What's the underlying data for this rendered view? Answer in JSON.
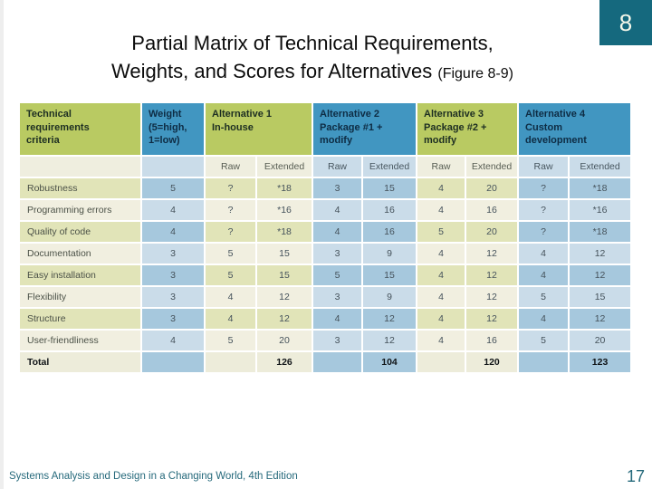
{
  "slide": {
    "number_badge": "8",
    "title_line1": "Partial Matrix of Technical Requirements,",
    "title_line2": "Weights, and Scores for Alternatives",
    "figure_ref": "(Figure 8-9)",
    "footer": "Systems Analysis and Design in a Changing World, 4th Edition",
    "page_number": "17"
  },
  "colors": {
    "header_green": "#b9ca62",
    "header_blue": "#4196c1",
    "badge_teal": "#15697e",
    "footer_teal": "#25697b",
    "row_green_dark": "#e1e4b8",
    "row_green_light": "#f1efe0",
    "row_blue_dark": "#a6c8dd",
    "row_blue_light": "#cadce9"
  },
  "matrix": {
    "col_headers": [
      {
        "label": "Technical\nrequirements\ncriteria",
        "tone": "green"
      },
      {
        "label": "Weight\n(5=high,\n1=low)",
        "tone": "blue"
      },
      {
        "label": "Alternative 1\nIn-house",
        "tone": "green"
      },
      {
        "label": "Alternative 2\nPackage #1 +\nmodify",
        "tone": "blue"
      },
      {
        "label": "Alternative 3\nPackage #2 +\nmodify",
        "tone": "green"
      },
      {
        "label": "Alternative 4\nCustom\ndevelopment",
        "tone": "blue"
      }
    ],
    "sub_headers": [
      "Raw",
      "Extended"
    ],
    "rows": [
      {
        "criteria": "Robustness",
        "weight": "5",
        "cells": [
          "?",
          "*18",
          "3",
          "15",
          "4",
          "20",
          "?",
          "*18"
        ]
      },
      {
        "criteria": "Programming errors",
        "weight": "4",
        "cells": [
          "?",
          "*16",
          "4",
          "16",
          "4",
          "16",
          "?",
          "*16"
        ]
      },
      {
        "criteria": "Quality of code",
        "weight": "4",
        "cells": [
          "?",
          "*18",
          "4",
          "16",
          "5",
          "20",
          "?",
          "*18"
        ]
      },
      {
        "criteria": "Documentation",
        "weight": "3",
        "cells": [
          "5",
          "15",
          "3",
          "9",
          "4",
          "12",
          "4",
          "12"
        ]
      },
      {
        "criteria": "Easy installation",
        "weight": "3",
        "cells": [
          "5",
          "15",
          "5",
          "15",
          "4",
          "12",
          "4",
          "12"
        ]
      },
      {
        "criteria": "Flexibility",
        "weight": "3",
        "cells": [
          "4",
          "12",
          "3",
          "9",
          "4",
          "12",
          "5",
          "15"
        ]
      },
      {
        "criteria": "Structure",
        "weight": "3",
        "cells": [
          "4",
          "12",
          "4",
          "12",
          "4",
          "12",
          "4",
          "12"
        ]
      },
      {
        "criteria": "User-friendliness",
        "weight": "4",
        "cells": [
          "5",
          "20",
          "3",
          "12",
          "4",
          "16",
          "5",
          "20"
        ]
      },
      {
        "criteria": "Total",
        "weight": "",
        "cells": [
          "",
          "126",
          "",
          "104",
          "",
          "120",
          "",
          "123"
        ],
        "total": true
      }
    ]
  }
}
